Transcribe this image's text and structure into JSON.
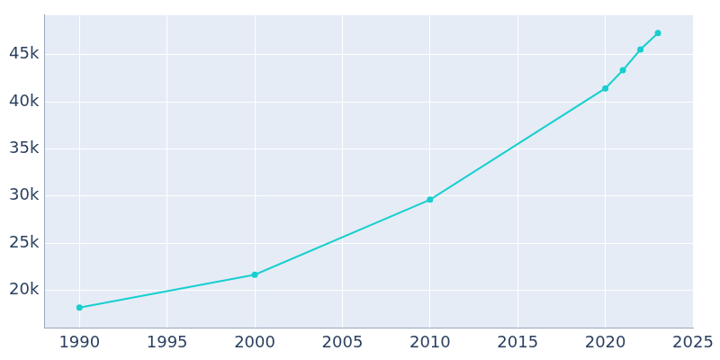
{
  "chart_data": {
    "type": "line",
    "x": [
      1990,
      2000,
      2010,
      2020,
      2021,
      2022,
      2023
    ],
    "values": [
      18170,
      21650,
      29615,
      41430,
      43350,
      45550,
      47290
    ],
    "color": "#17cfcf",
    "marker": "circle",
    "xlim": [
      1988,
      2025
    ],
    "xticks": [
      1990,
      1995,
      2000,
      2005,
      2010,
      2015,
      2020,
      2025
    ],
    "ylim": [
      16000,
      49200
    ],
    "yticks": [
      {
        "value": 20000,
        "label": "20k"
      },
      {
        "value": 25000,
        "label": "25k"
      },
      {
        "value": 30000,
        "label": "30k"
      },
      {
        "value": 35000,
        "label": "35k"
      },
      {
        "value": 40000,
        "label": "40k"
      },
      {
        "value": 45000,
        "label": "45k"
      }
    ],
    "grid": true
  }
}
